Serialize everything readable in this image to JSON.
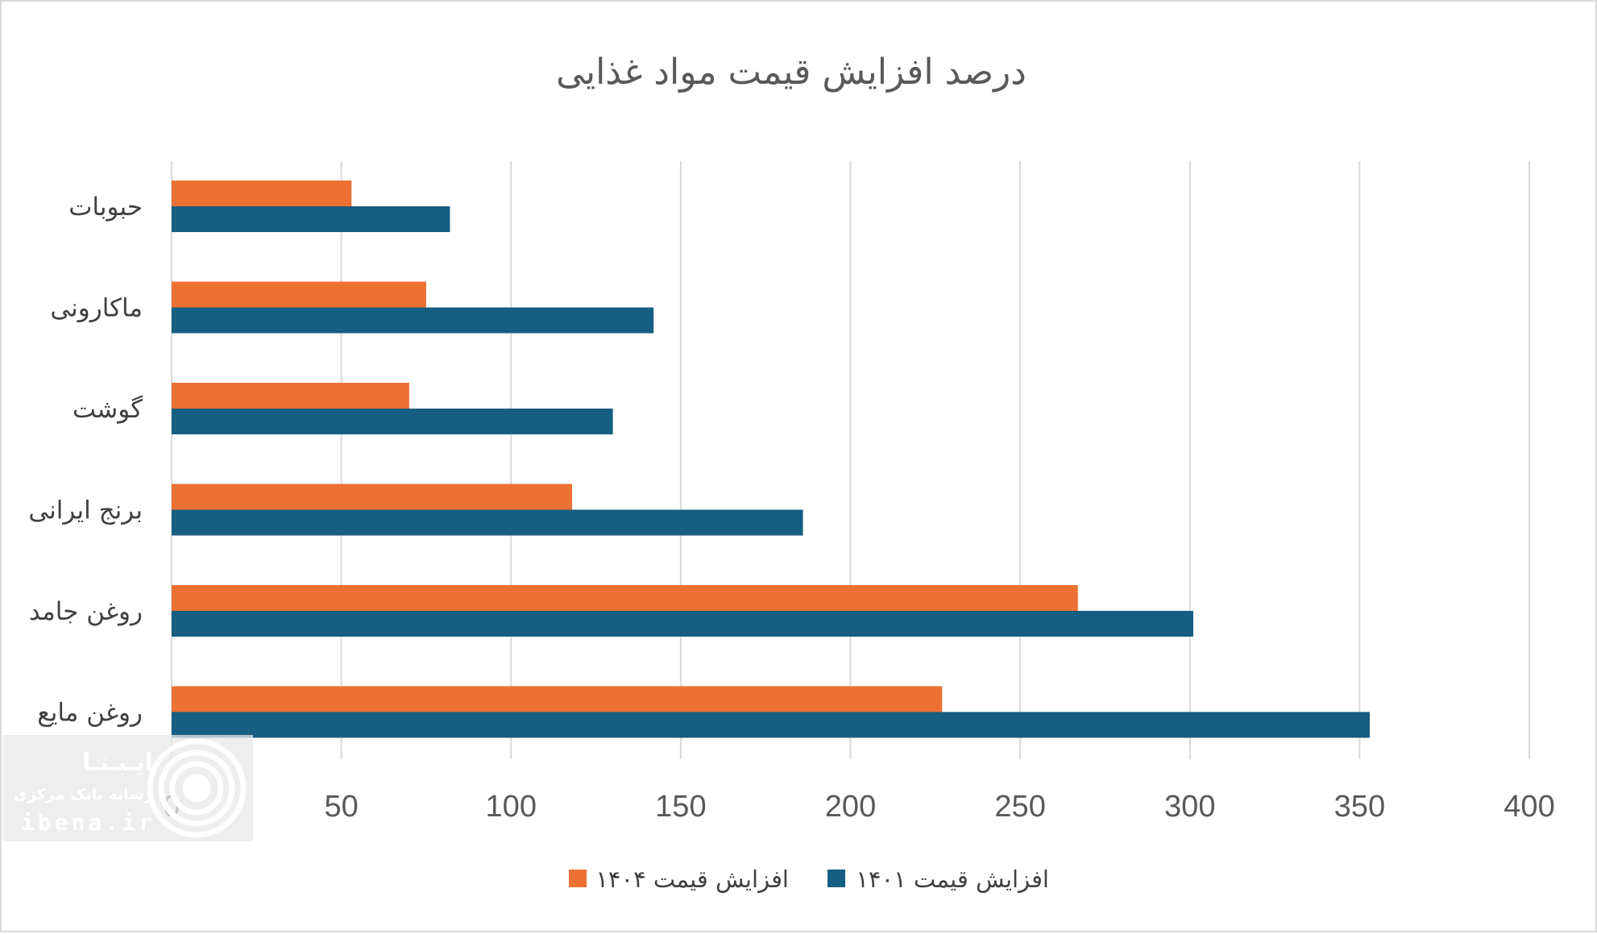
{
  "chart_data": {
    "type": "bar",
    "orientation": "horizontal",
    "title": "درصد افزایش قیمت مواد غذایی",
    "categories": [
      "حبوبات",
      "ماکارونی",
      "گوشت",
      "برنج ایرانی",
      "روغن جامد",
      "روغن مایع"
    ],
    "series": [
      {
        "name": "افزایش قیمت ۱۴۰۴",
        "color": "#ed7133",
        "values": [
          53,
          75,
          70,
          118,
          267,
          227
        ]
      },
      {
        "name": "افزایش قیمت ۱۴۰۱",
        "color": "#165e82",
        "values": [
          82,
          142,
          130,
          186,
          301,
          353
        ]
      }
    ],
    "xlim": [
      0,
      400
    ],
    "x_ticks": [
      "0",
      "50",
      "100",
      "150",
      "200",
      "250",
      "300",
      "350",
      "400"
    ],
    "grid": true,
    "legend_position": "bottom"
  },
  "watermark": {
    "brand": "ایـبـنـا",
    "tagline": "رسانه بانک مرکزی",
    "site": "ibena.ir"
  }
}
